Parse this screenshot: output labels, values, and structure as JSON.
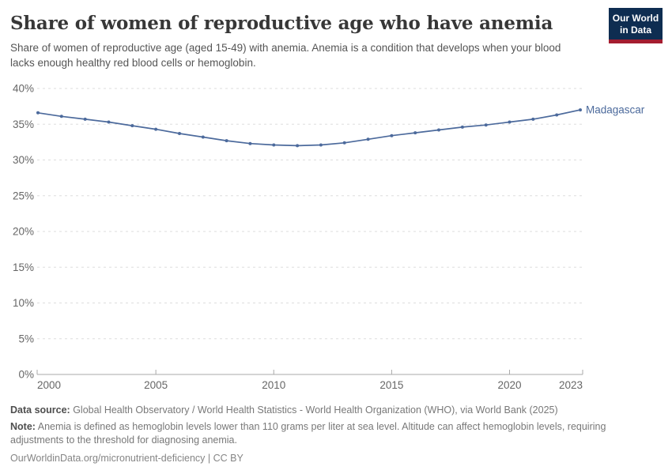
{
  "header": {
    "title": "Share of women of reproductive age who have anemia",
    "subtitle": "Share of women of reproductive age (aged 15-49) with anemia. Anemia is a condition that develops when your blood lacks enough healthy red blood cells or hemoglobin.",
    "logo": {
      "line1": "Our World",
      "line2": "in Data"
    }
  },
  "chart_data": {
    "type": "line",
    "title": "Share of women of reproductive age who have anemia",
    "xlabel": "",
    "ylabel": "",
    "ylim": [
      0,
      40
    ],
    "ytick_step": 5,
    "ytick_suffix": "%",
    "xticks": [
      2000,
      2005,
      2010,
      2015,
      2020,
      2023
    ],
    "grid": "horizontal-dashed",
    "legend_position": "end-of-line-label",
    "series": [
      {
        "name": "Madagascar",
        "color": "#4C6A9C",
        "x": [
          2000,
          2001,
          2002,
          2003,
          2004,
          2005,
          2006,
          2007,
          2008,
          2009,
          2010,
          2011,
          2012,
          2013,
          2014,
          2015,
          2016,
          2017,
          2018,
          2019,
          2020,
          2021,
          2022,
          2023
        ],
        "values": [
          36.6,
          36.1,
          35.7,
          35.3,
          34.8,
          34.3,
          33.7,
          33.2,
          32.7,
          32.3,
          32.1,
          32.0,
          32.1,
          32.4,
          32.9,
          33.4,
          33.8,
          34.2,
          34.6,
          34.9,
          35.3,
          35.7,
          36.3,
          37.0
        ]
      }
    ]
  },
  "footer": {
    "data_source_label": "Data source:",
    "data_source_text": " Global Health Observatory / World Health Statistics - World Health Organization (WHO), via World Bank (2025)",
    "note_label": "Note:",
    "note_text": " Anemia is defined as hemoglobin levels lower than 110 grams per liter at sea level. Altitude can affect hemoglobin levels, requiring adjustments to the threshold for diagnosing anemia.",
    "citation": "OurWorldinData.org/micronutrient-deficiency | CC BY"
  },
  "colors": {
    "line": "#4C6A9C",
    "grid": "#DDDDDD",
    "axis": "#A9A9A9",
    "tick_label": "#666666",
    "title": "#373737",
    "subtitle": "#555555",
    "footer": "#787878",
    "logo_bg": "#0E2D51",
    "logo_stripe": "#A41D30"
  }
}
